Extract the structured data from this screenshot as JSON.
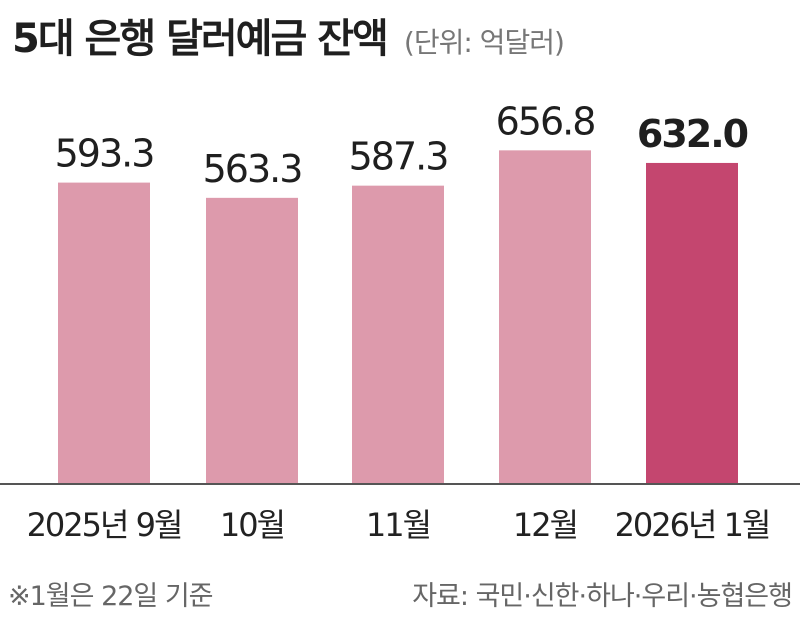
{
  "title": "5대 은행 달러예금 잔액",
  "unit": "(단위: 억달러)",
  "footnote": "※1월은 22일 기준",
  "source": "자료: 국민·신한·하나·우리·농협은행",
  "colors": {
    "bar": "#dd9aac",
    "bar_highlight": "#c4466f",
    "axis": "#555555"
  },
  "chart_data": {
    "type": "bar",
    "categories": [
      "2025년 9월",
      "10월",
      "11월",
      "12월",
      "2026년 1월"
    ],
    "values": [
      593.3,
      563.3,
      587.3,
      656.8,
      632.0
    ],
    "value_labels": [
      "593.3",
      "563.3",
      "587.3",
      "656.8",
      "632.0"
    ],
    "highlight_index": 4,
    "title": "5대 은행 달러예금 잔액",
    "xlabel": "",
    "ylabel": "",
    "ylim": [
      0,
      700
    ],
    "grid": false,
    "legend": "none"
  }
}
